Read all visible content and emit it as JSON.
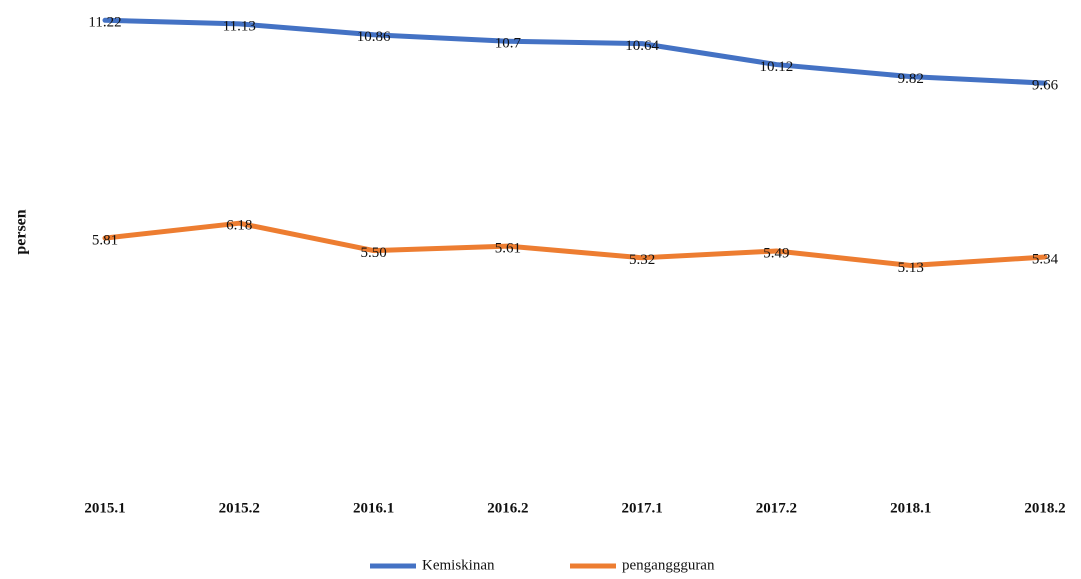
{
  "chart_data": {
    "type": "line",
    "y_axis_label": "persen",
    "categories": [
      "2015.1",
      "2015.2",
      "2016.1",
      "2016.2",
      "2017.1",
      "2017.2",
      "2018.1",
      "2018.2"
    ],
    "series": [
      {
        "name": "Kemiskinan",
        "color": "#4472c4",
        "values": [
          11.22,
          11.13,
          10.86,
          10.7,
          10.64,
          10.12,
          9.82,
          9.66
        ]
      },
      {
        "name": "penganggguran",
        "color": "#ed7d31",
        "values": [
          5.81,
          6.18,
          5.5,
          5.61,
          5.32,
          5.49,
          5.13,
          5.34
        ],
        "value_labels": [
          "5.81",
          "6.18",
          "5.50",
          "5.61",
          "5.32",
          "5.49",
          "5.13",
          "5.34"
        ]
      }
    ],
    "ylim": [
      0,
      11.5
    ],
    "legend": "bottom"
  }
}
